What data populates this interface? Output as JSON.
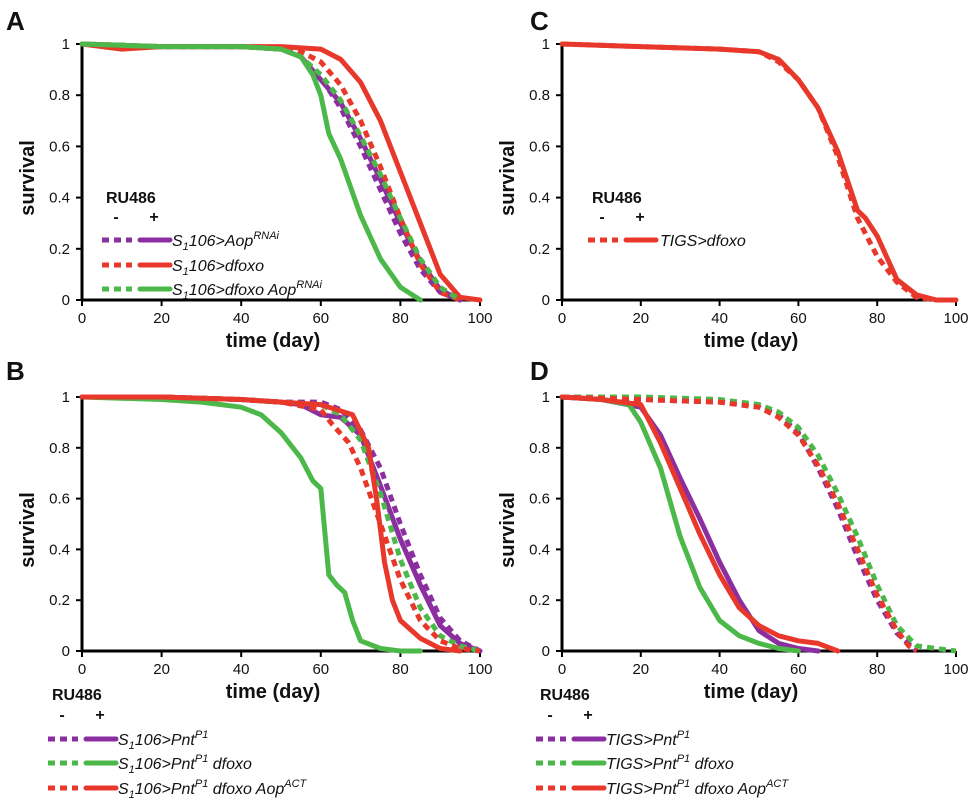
{
  "colors": {
    "purple": "#8b2fa0",
    "red": "#e8382b",
    "green": "#4db84a",
    "axis": "#000000"
  },
  "chart_data": [
    {
      "panel": "A",
      "type": "line",
      "xlabel": "time (day)",
      "ylabel": "survival",
      "xlim": [
        0,
        100
      ],
      "ylim": [
        0,
        1
      ],
      "xticks": [
        "0",
        "20",
        "40",
        "60",
        "80",
        "100"
      ],
      "yticks": [
        "0",
        "0.2",
        "0.4",
        "0.6",
        "0.8",
        "1"
      ],
      "legend": {
        "title": "RU486",
        "minus": "-",
        "plus": "+",
        "entries": [
          {
            "main": "S",
            "sub": "1",
            "rest": "106>Aop",
            "sup": "RNAi",
            "tail": "",
            "color": "purple"
          },
          {
            "main": "S",
            "sub": "1",
            "rest": "106>dfoxo",
            "sup": "",
            "tail": "",
            "color": "red"
          },
          {
            "main": "S",
            "sub": "1",
            "rest": "106>dfoxo Aop",
            "sup": "RNAi",
            "tail": "",
            "color": "green"
          }
        ]
      },
      "series": [
        {
          "color": "purple",
          "dashed": true,
          "x": [
            0,
            20,
            40,
            50,
            55,
            60,
            65,
            70,
            75,
            80,
            85,
            90,
            95
          ],
          "y": [
            1,
            0.99,
            0.99,
            0.98,
            0.95,
            0.87,
            0.75,
            0.6,
            0.43,
            0.26,
            0.12,
            0.03,
            0
          ]
        },
        {
          "color": "purple",
          "dashed": false,
          "x": [
            0,
            20,
            40,
            50,
            55,
            60,
            65,
            70,
            75,
            80,
            85,
            90,
            95
          ],
          "y": [
            1,
            0.99,
            0.99,
            0.98,
            0.95,
            0.86,
            0.77,
            0.63,
            0.47,
            0.3,
            0.15,
            0.04,
            0
          ]
        },
        {
          "color": "red",
          "dashed": true,
          "x": [
            0,
            20,
            40,
            50,
            55,
            60,
            65,
            70,
            75,
            80,
            85,
            90,
            95
          ],
          "y": [
            1,
            0.99,
            0.99,
            0.98,
            0.97,
            0.93,
            0.84,
            0.7,
            0.52,
            0.32,
            0.14,
            0.03,
            0
          ]
        },
        {
          "color": "red",
          "dashed": false,
          "x": [
            0,
            10,
            20,
            40,
            50,
            60,
            65,
            70,
            75,
            80,
            85,
            90,
            95,
            100
          ],
          "y": [
            1,
            0.98,
            0.99,
            0.99,
            0.99,
            0.98,
            0.94,
            0.85,
            0.7,
            0.5,
            0.3,
            0.1,
            0.01,
            0
          ]
        },
        {
          "color": "green",
          "dashed": true,
          "x": [
            0,
            20,
            40,
            50,
            55,
            60,
            65,
            70,
            75,
            80,
            85,
            90,
            95
          ],
          "y": [
            1,
            0.99,
            0.99,
            0.98,
            0.95,
            0.88,
            0.78,
            0.64,
            0.49,
            0.32,
            0.16,
            0.05,
            0
          ]
        },
        {
          "color": "green",
          "dashed": false,
          "x": [
            0,
            20,
            40,
            50,
            55,
            58,
            60,
            62,
            65,
            70,
            75,
            80,
            85
          ],
          "y": [
            1,
            0.99,
            0.99,
            0.98,
            0.95,
            0.88,
            0.8,
            0.65,
            0.55,
            0.33,
            0.16,
            0.05,
            0
          ]
        }
      ]
    },
    {
      "panel": "C",
      "type": "line",
      "xlabel": "time (day)",
      "ylabel": "survival",
      "xlim": [
        0,
        100
      ],
      "ylim": [
        0,
        1
      ],
      "xticks": [
        "0",
        "20",
        "40",
        "60",
        "80",
        "100"
      ],
      "yticks": [
        "0",
        "0.2",
        "0.4",
        "0.6",
        "0.8",
        "1"
      ],
      "legend": {
        "title": "RU486",
        "minus": "-",
        "plus": "+",
        "entries": [
          {
            "main": "TIGS>dfoxo",
            "sub": "",
            "rest": "",
            "sup": "",
            "tail": "",
            "color": "red"
          }
        ]
      },
      "series": [
        {
          "color": "red",
          "dashed": true,
          "x": [
            0,
            20,
            40,
            50,
            55,
            60,
            65,
            70,
            75,
            80,
            85,
            90,
            95,
            100
          ],
          "y": [
            1,
            0.99,
            0.98,
            0.97,
            0.93,
            0.86,
            0.75,
            0.56,
            0.32,
            0.17,
            0.07,
            0.01,
            0,
            0
          ]
        },
        {
          "color": "red",
          "dashed": false,
          "x": [
            0,
            20,
            40,
            50,
            55,
            60,
            65,
            70,
            75,
            77,
            80,
            85,
            90,
            95,
            100
          ],
          "y": [
            1,
            0.99,
            0.98,
            0.97,
            0.94,
            0.86,
            0.75,
            0.58,
            0.35,
            0.32,
            0.25,
            0.08,
            0.02,
            0,
            0
          ]
        }
      ]
    },
    {
      "panel": "B",
      "type": "line",
      "xlabel": "time (day)",
      "ylabel": "survival",
      "xlim": [
        0,
        100
      ],
      "ylim": [
        0,
        1
      ],
      "xticks": [
        "0",
        "20",
        "40",
        "60",
        "80",
        "100"
      ],
      "yticks": [
        "0",
        "0.2",
        "0.4",
        "0.6",
        "0.8",
        "1"
      ],
      "legend": {
        "title": "RU486",
        "minus": "-",
        "plus": "+",
        "entries": [
          {
            "main": "S",
            "sub": "1",
            "rest": "106>Pnt",
            "sup": "P1",
            "tail": "",
            "color": "purple"
          },
          {
            "main": "S",
            "sub": "1",
            "rest": "106>Pnt",
            "sup": "P1",
            "tail": " dfoxo",
            "color": "green"
          },
          {
            "main": "S",
            "sub": "1",
            "rest": "106>Pnt",
            "sup": "P1",
            "tail": " dfoxo Aop",
            "sup2": "ACT",
            "color": "red"
          }
        ]
      },
      "series": [
        {
          "color": "purple",
          "dashed": true,
          "x": [
            0,
            20,
            40,
            50,
            60,
            65,
            70,
            75,
            80,
            85,
            90,
            95,
            100
          ],
          "y": [
            1,
            1,
            0.99,
            0.98,
            0.98,
            0.95,
            0.87,
            0.72,
            0.5,
            0.3,
            0.13,
            0.04,
            0
          ]
        },
        {
          "color": "purple",
          "dashed": false,
          "x": [
            0,
            20,
            40,
            50,
            55,
            60,
            65,
            70,
            75,
            80,
            85,
            90,
            95,
            100
          ],
          "y": [
            1,
            1,
            0.99,
            0.98,
            0.97,
            0.93,
            0.92,
            0.85,
            0.65,
            0.44,
            0.26,
            0.1,
            0.03,
            0
          ]
        },
        {
          "color": "green",
          "dashed": true,
          "x": [
            0,
            20,
            40,
            50,
            60,
            65,
            70,
            75,
            80,
            85,
            90,
            95,
            100
          ],
          "y": [
            1,
            1,
            0.99,
            0.98,
            0.97,
            0.93,
            0.83,
            0.62,
            0.36,
            0.17,
            0.06,
            0.02,
            0
          ]
        },
        {
          "color": "green",
          "dashed": false,
          "x": [
            0,
            20,
            30,
            40,
            45,
            50,
            55,
            58,
            60,
            62,
            64,
            66,
            68,
            70,
            75,
            80,
            85
          ],
          "y": [
            1,
            0.99,
            0.98,
            0.96,
            0.93,
            0.86,
            0.76,
            0.67,
            0.64,
            0.3,
            0.26,
            0.23,
            0.12,
            0.04,
            0.01,
            0,
            0
          ]
        },
        {
          "color": "red",
          "dashed": true,
          "x": [
            0,
            20,
            40,
            50,
            60,
            63,
            67,
            70,
            75,
            80,
            85,
            90,
            95,
            100
          ],
          "y": [
            1,
            1,
            0.99,
            0.98,
            0.95,
            0.89,
            0.82,
            0.72,
            0.5,
            0.28,
            0.12,
            0.04,
            0.01,
            0
          ]
        },
        {
          "color": "red",
          "dashed": false,
          "x": [
            0,
            20,
            40,
            50,
            60,
            68,
            72,
            74,
            76,
            78,
            80,
            85,
            90,
            95
          ],
          "y": [
            1,
            1,
            0.99,
            0.98,
            0.97,
            0.93,
            0.8,
            0.6,
            0.35,
            0.2,
            0.12,
            0.05,
            0.01,
            0
          ]
        }
      ]
    },
    {
      "panel": "D",
      "type": "line",
      "xlabel": "time (day)",
      "ylabel": "survival",
      "xlim": [
        0,
        100
      ],
      "ylim": [
        0,
        1
      ],
      "xticks": [
        "0",
        "20",
        "40",
        "60",
        "80",
        "100"
      ],
      "yticks": [
        "0",
        "0.2",
        "0.4",
        "0.6",
        "0.8",
        "1"
      ],
      "legend": {
        "title": "RU486",
        "minus": "-",
        "plus": "+",
        "entries": [
          {
            "main": "TIGS>Pnt",
            "sub": "",
            "rest": "",
            "sup": "P1",
            "tail": "",
            "color": "purple"
          },
          {
            "main": "TIGS>Pnt",
            "sub": "",
            "rest": "",
            "sup": "P1",
            "tail": " dfoxo",
            "color": "green"
          },
          {
            "main": "TIGS>Pnt",
            "sub": "",
            "rest": "",
            "sup": "P1",
            "tail": " dfoxo Aop",
            "sup2": "ACT",
            "color": "red"
          }
        ]
      },
      "series": [
        {
          "color": "purple",
          "dashed": true,
          "x": [
            0,
            20,
            40,
            50,
            55,
            60,
            65,
            70,
            75,
            80,
            85,
            90
          ],
          "y": [
            1,
            0.99,
            0.98,
            0.96,
            0.93,
            0.86,
            0.72,
            0.56,
            0.37,
            0.2,
            0.07,
            0
          ]
        },
        {
          "color": "purple",
          "dashed": false,
          "x": [
            0,
            10,
            20,
            25,
            30,
            35,
            40,
            45,
            50,
            55,
            60,
            65
          ],
          "y": [
            1,
            0.99,
            0.96,
            0.85,
            0.68,
            0.52,
            0.35,
            0.2,
            0.08,
            0.03,
            0.01,
            0
          ]
        },
        {
          "color": "green",
          "dashed": true,
          "x": [
            0,
            20,
            40,
            50,
            55,
            60,
            65,
            70,
            75,
            80,
            85,
            90,
            95,
            100
          ],
          "y": [
            1,
            1,
            0.99,
            0.97,
            0.94,
            0.88,
            0.77,
            0.62,
            0.45,
            0.26,
            0.1,
            0.02,
            0.01,
            0
          ]
        },
        {
          "color": "green",
          "dashed": false,
          "x": [
            0,
            10,
            17,
            20,
            25,
            30,
            35,
            40,
            45,
            50,
            55,
            60
          ],
          "y": [
            1,
            0.99,
            0.97,
            0.9,
            0.72,
            0.45,
            0.25,
            0.12,
            0.06,
            0.03,
            0.01,
            0
          ]
        },
        {
          "color": "red",
          "dashed": true,
          "x": [
            0,
            20,
            40,
            50,
            55,
            60,
            65,
            70,
            75,
            80,
            85,
            88,
            90
          ],
          "y": [
            1,
            0.99,
            0.98,
            0.96,
            0.92,
            0.85,
            0.73,
            0.58,
            0.4,
            0.22,
            0.08,
            0.02,
            0
          ]
        },
        {
          "color": "red",
          "dashed": false,
          "x": [
            0,
            10,
            20,
            25,
            30,
            35,
            40,
            45,
            50,
            55,
            60,
            65,
            70
          ],
          "y": [
            1,
            0.99,
            0.97,
            0.82,
            0.64,
            0.46,
            0.3,
            0.17,
            0.1,
            0.06,
            0.04,
            0.03,
            0
          ]
        }
      ]
    }
  ]
}
